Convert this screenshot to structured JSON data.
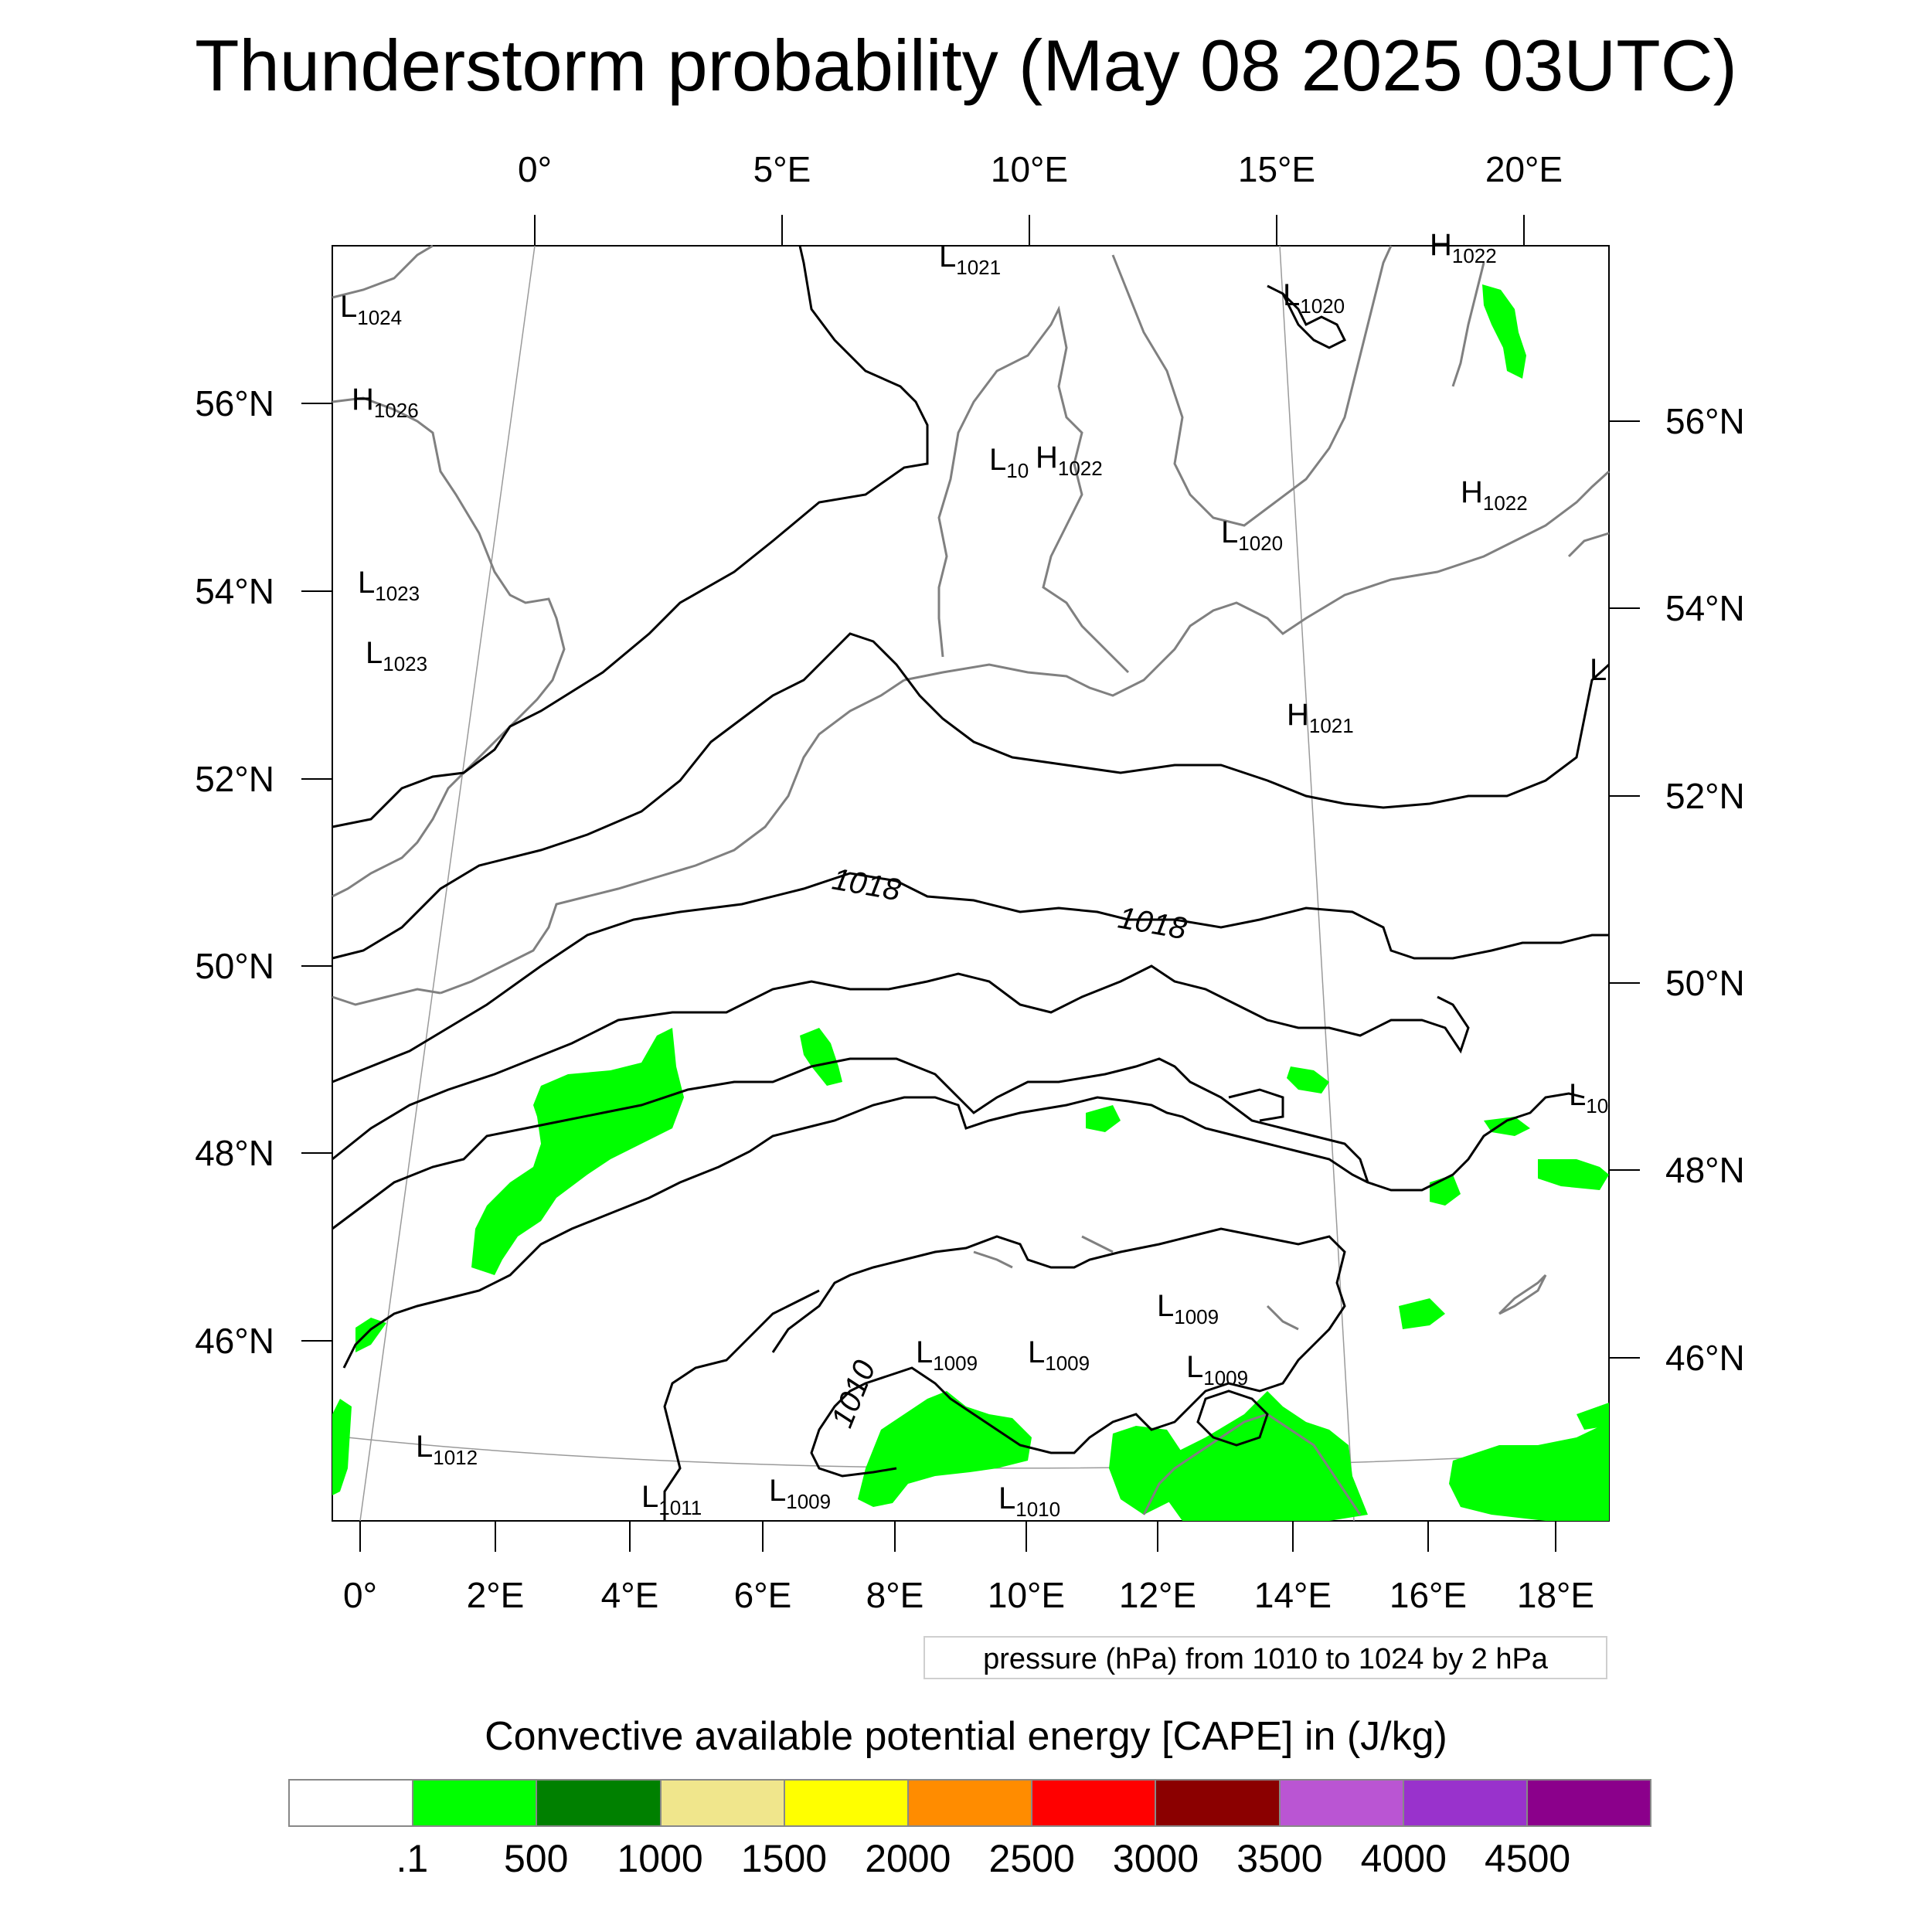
{
  "title": "Thunderstorm probability (May 08 2025 03UTC)",
  "top_lon_labels": [
    "0°",
    "5°E",
    "10°E",
    "15°E",
    "20°E"
  ],
  "left_lat_labels": [
    "56°N",
    "54°N",
    "52°N",
    "50°N",
    "48°N",
    "46°N"
  ],
  "right_lat_labels": [
    "56°N",
    "54°N",
    "52°N",
    "50°N",
    "48°N",
    "46°N"
  ],
  "bottom_lon_labels": [
    "0°",
    "2°E",
    "4°E",
    "6°E",
    "8°E",
    "10°E",
    "12°E",
    "14°E",
    "16°E",
    "18°E"
  ],
  "contour_labels": [
    "1018",
    "1018",
    "1010"
  ],
  "pressure_centers": [
    {
      "letter": "L",
      "value": "1021"
    },
    {
      "letter": "H",
      "value": "1022"
    },
    {
      "letter": "L",
      "value": "1024"
    },
    {
      "letter": "L",
      "value": "1020"
    },
    {
      "letter": "H",
      "value": "1026"
    },
    {
      "letter": "L",
      "value": "10"
    },
    {
      "letter": "H",
      "value": "1022"
    },
    {
      "letter": "H",
      "value": "1022"
    },
    {
      "letter": "L",
      "value": "1020"
    },
    {
      "letter": "L",
      "value": "1023"
    },
    {
      "letter": "L",
      "value": "1023"
    },
    {
      "letter": "L",
      "value": ""
    },
    {
      "letter": "H",
      "value": "1021"
    },
    {
      "letter": "L",
      "value": "10"
    },
    {
      "letter": "L",
      "value": "1009"
    },
    {
      "letter": "L",
      "value": "1009"
    },
    {
      "letter": "L",
      "value": "1009"
    },
    {
      "letter": "L",
      "value": "1009"
    },
    {
      "letter": "L",
      "value": "1012"
    },
    {
      "letter": "L",
      "value": "1011"
    },
    {
      "letter": "L",
      "value": "1009"
    },
    {
      "letter": "L",
      "value": "1010"
    }
  ],
  "contour_info": "pressure (hPa) from 1010 to 1024 by 2 hPa",
  "colorbar": {
    "title": "Convective available potential energy [CAPE] in (J/kg)",
    "colors": [
      "#ffffff",
      "#00ff00",
      "#008000",
      "#f0e68c",
      "#ffff00",
      "#ff8c00",
      "#ff0000",
      "#8b0000",
      "#ba55d3",
      "#9932cc",
      "#8b008b"
    ],
    "labels": [
      ".1",
      "500",
      "1000",
      "1500",
      "2000",
      "2500",
      "3000",
      "3500",
      "4000",
      "4500"
    ]
  },
  "colors": {
    "cape_low": "#00ff00",
    "coastline": "#808080",
    "isobar": "#000000"
  }
}
